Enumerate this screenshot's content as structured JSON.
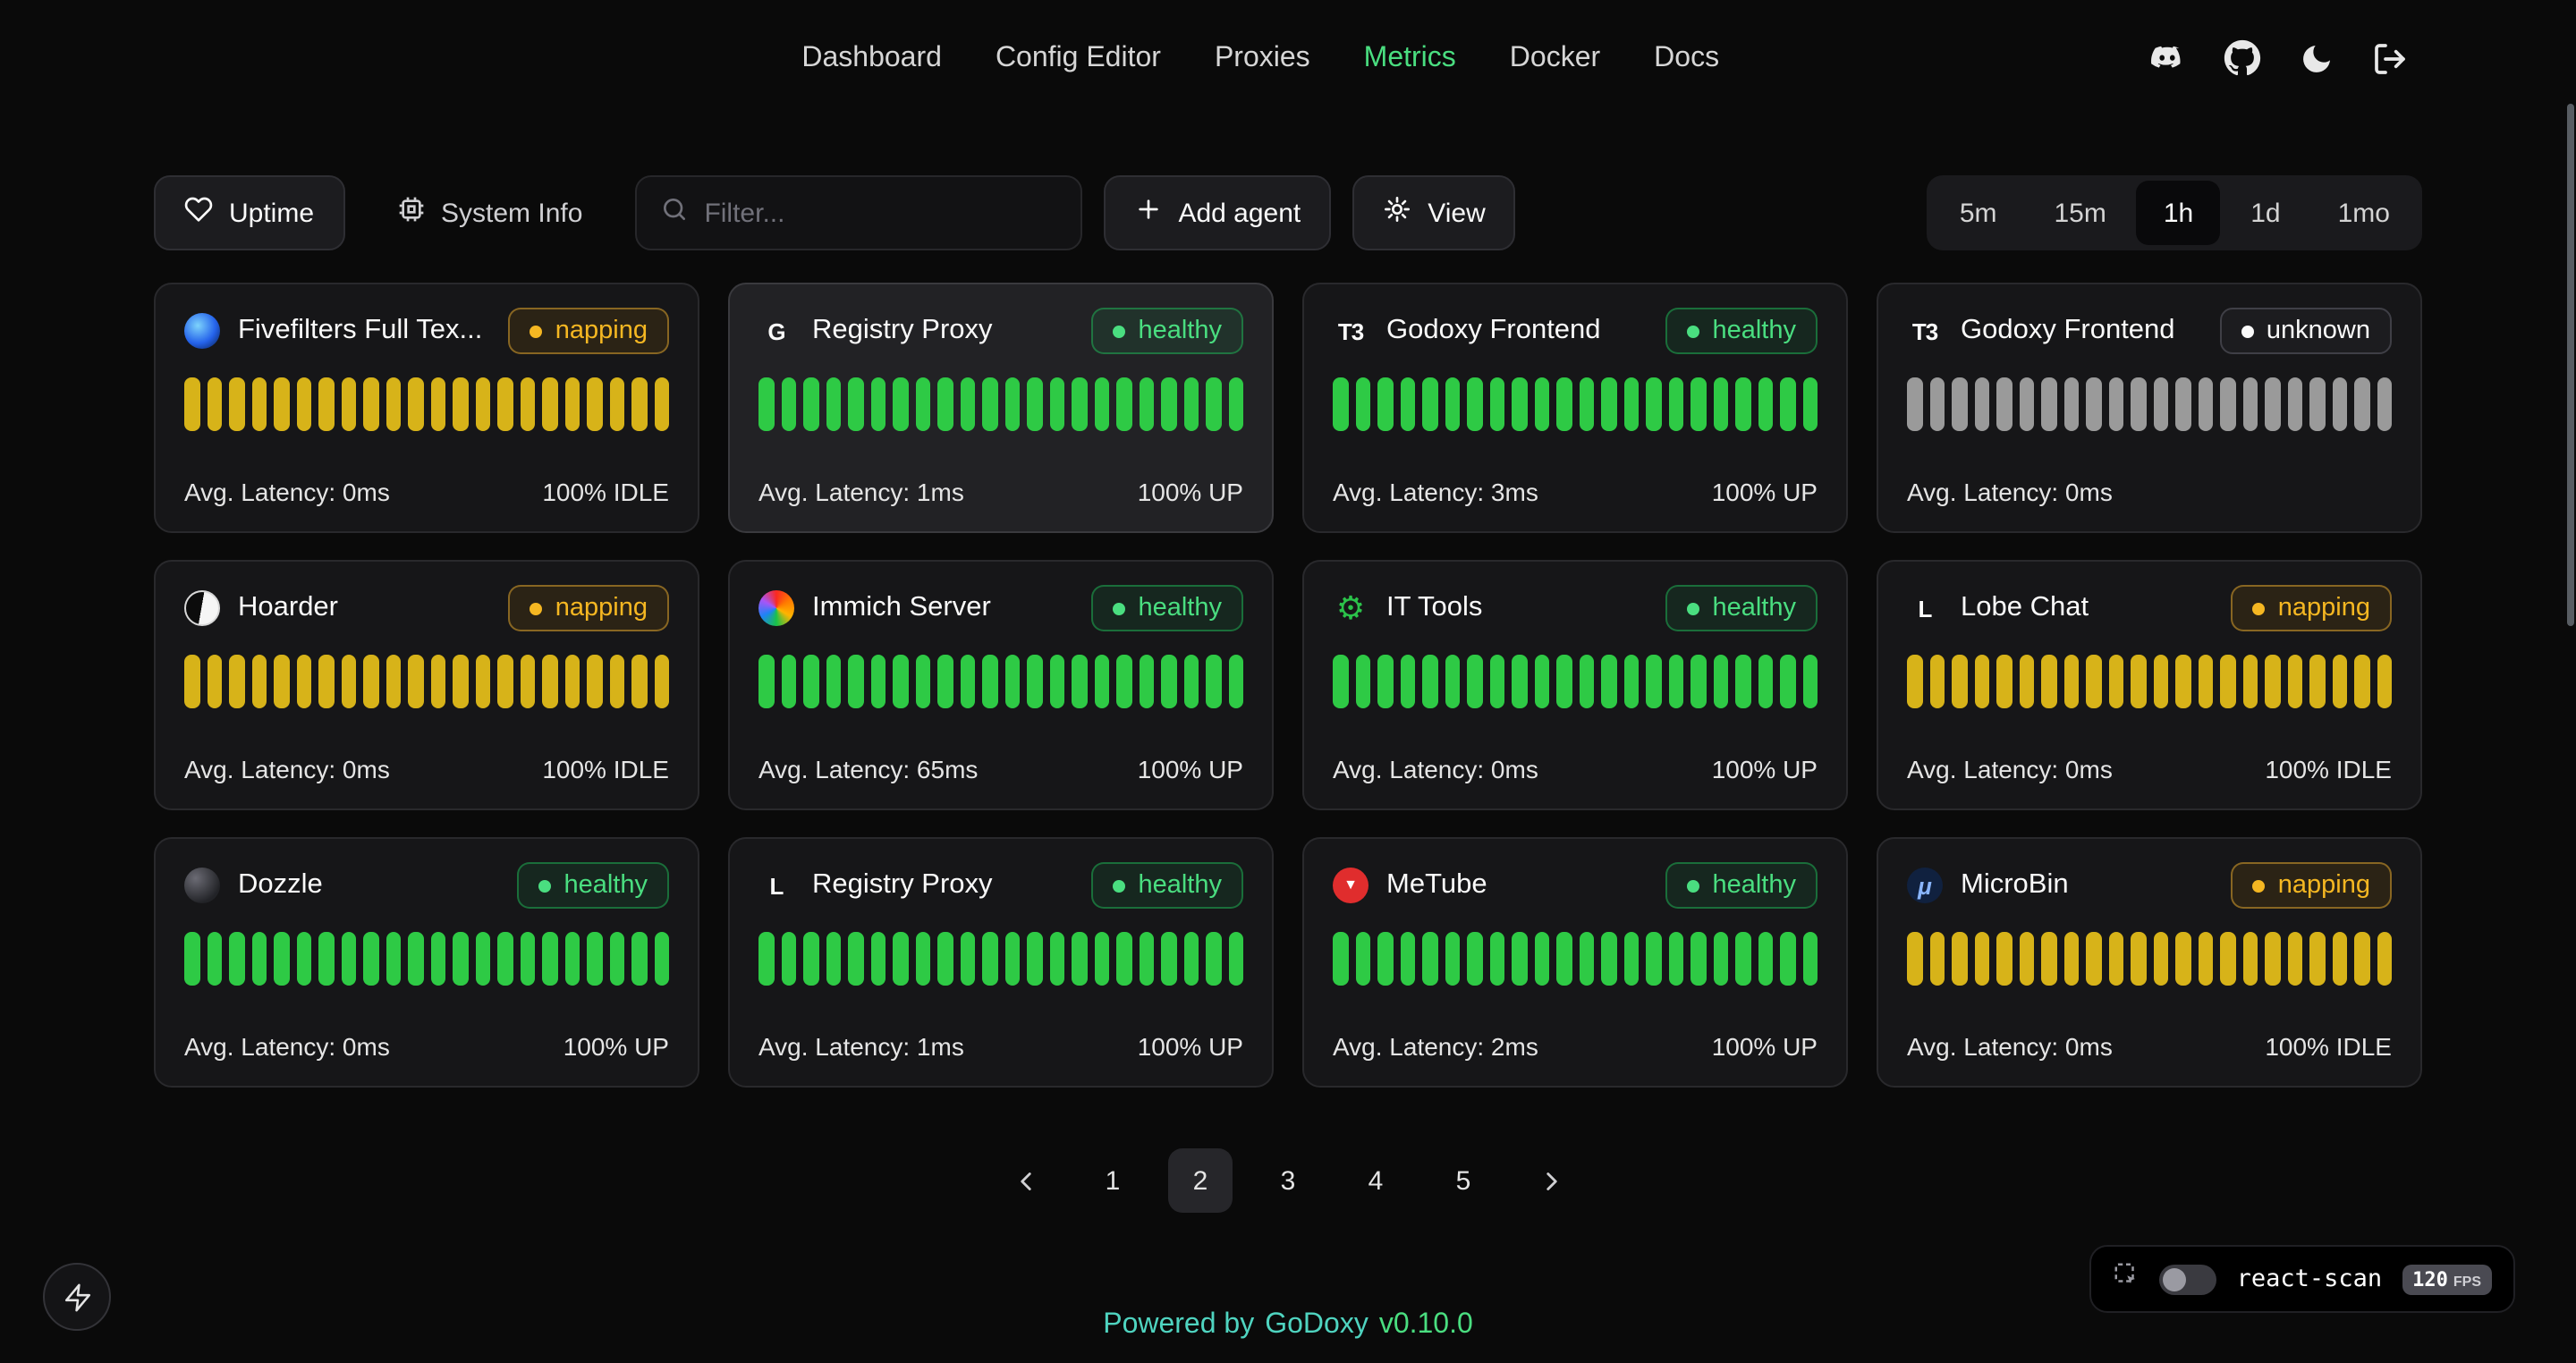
{
  "nav": {
    "items": [
      {
        "label": "Dashboard",
        "active": false
      },
      {
        "label": "Config Editor",
        "active": false
      },
      {
        "label": "Proxies",
        "active": false
      },
      {
        "label": "Metrics",
        "active": true
      },
      {
        "label": "Docker",
        "active": false
      },
      {
        "label": "Docs",
        "active": false
      }
    ]
  },
  "toolbar": {
    "uptime_label": "Uptime",
    "system_info_label": "System Info",
    "filter_placeholder": "Filter...",
    "add_agent_label": "Add agent",
    "view_label": "View",
    "time_ranges": [
      "5m",
      "15m",
      "1h",
      "1d",
      "1mo"
    ],
    "active_time_range": "1h"
  },
  "cards": [
    {
      "name": "Fivefilters Full Tex...",
      "status": "napping",
      "latency": "Avg. Latency: 0ms",
      "uptime": "100% IDLE",
      "bar_color": "yellow",
      "bar_count": 22,
      "highlight": false,
      "icon": {
        "variant": "fivefilters",
        "glyph": ""
      }
    },
    {
      "name": "Registry Proxy",
      "status": "healthy",
      "latency": "Avg. Latency: 1ms",
      "uptime": "100% UP",
      "bar_color": "green",
      "bar_count": 22,
      "highlight": true,
      "icon": {
        "variant": "letter",
        "glyph": "G"
      }
    },
    {
      "name": "Godoxy Frontend",
      "status": "healthy",
      "latency": "Avg. Latency: 3ms",
      "uptime": "100% UP",
      "bar_color": "green",
      "bar_count": 22,
      "highlight": false,
      "icon": {
        "variant": "letter",
        "glyph": "T3"
      }
    },
    {
      "name": "Godoxy Frontend",
      "status": "unknown",
      "latency": "Avg. Latency: 0ms",
      "uptime": "",
      "bar_color": "gray",
      "bar_count": 22,
      "highlight": false,
      "icon": {
        "variant": "letter",
        "glyph": "T3"
      }
    },
    {
      "name": "Hoarder",
      "status": "napping",
      "latency": "Avg. Latency: 0ms",
      "uptime": "100% IDLE",
      "bar_color": "yellow",
      "bar_count": 22,
      "highlight": false,
      "icon": {
        "variant": "hoarder",
        "glyph": ""
      }
    },
    {
      "name": "Immich Server",
      "status": "healthy",
      "latency": "Avg. Latency: 65ms",
      "uptime": "100% UP",
      "bar_color": "green",
      "bar_count": 22,
      "highlight": false,
      "icon": {
        "variant": "immich",
        "glyph": ""
      }
    },
    {
      "name": "IT Tools",
      "status": "healthy",
      "latency": "Avg. Latency: 0ms",
      "uptime": "100% UP",
      "bar_color": "green",
      "bar_count": 22,
      "highlight": false,
      "icon": {
        "variant": "ittools",
        "glyph": "⚙"
      }
    },
    {
      "name": "Lobe Chat",
      "status": "napping",
      "latency": "Avg. Latency: 0ms",
      "uptime": "100% IDLE",
      "bar_color": "yellow",
      "bar_count": 22,
      "highlight": false,
      "icon": {
        "variant": "letter",
        "glyph": "L"
      }
    },
    {
      "name": "Dozzle",
      "status": "healthy",
      "latency": "Avg. Latency: 0ms",
      "uptime": "100% UP",
      "bar_color": "green",
      "bar_count": 22,
      "highlight": false,
      "icon": {
        "variant": "dozzle",
        "glyph": ""
      }
    },
    {
      "name": "Registry Proxy",
      "status": "healthy",
      "latency": "Avg. Latency: 1ms",
      "uptime": "100% UP",
      "bar_color": "green",
      "bar_count": 22,
      "highlight": false,
      "icon": {
        "variant": "letter",
        "glyph": "L"
      }
    },
    {
      "name": "MeTube",
      "status": "healthy",
      "latency": "Avg. Latency: 2ms",
      "uptime": "100% UP",
      "bar_color": "green",
      "bar_count": 22,
      "highlight": false,
      "icon": {
        "variant": "metube",
        "glyph": "▼"
      }
    },
    {
      "name": "MicroBin",
      "status": "napping",
      "latency": "Avg. Latency: 0ms",
      "uptime": "100% IDLE",
      "bar_color": "yellow",
      "bar_count": 22,
      "highlight": false,
      "icon": {
        "variant": "microbin",
        "glyph": "μ"
      }
    }
  ],
  "pagination": {
    "pages": [
      "1",
      "2",
      "3",
      "4",
      "5"
    ],
    "active": "2"
  },
  "react_scan": {
    "label": "react-scan",
    "fps": "120",
    "fps_unit": "FPS"
  },
  "footer": {
    "powered_by": "Powered by",
    "brand": "GoDoxy",
    "version": "v0.10.0"
  },
  "colors": {
    "accent-green": "#4ade80",
    "bar-green": "#2eca45",
    "bar-yellow": "#d7b319",
    "bar-gray": "#9a9a9a",
    "badge-healthy": "#4ade80",
    "badge-napping": "#f5b722",
    "badge-unknown": "#fafafa",
    "footer-teal": "#4fd4c0",
    "footer-green": "#4ade80"
  }
}
